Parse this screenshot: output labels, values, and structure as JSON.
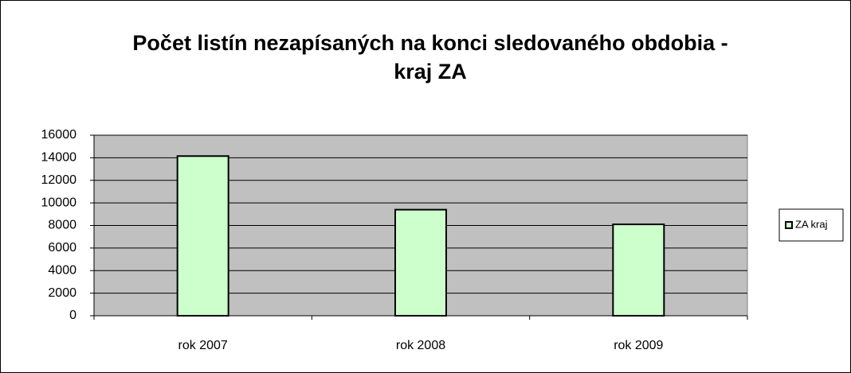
{
  "chart_data": {
    "type": "bar",
    "title": "Počet listín nezapísaných na konci sledovaného obdobia - kraj ZA",
    "categories": [
      "rok 2007",
      "rok 2008",
      "rok 2009"
    ],
    "series": [
      {
        "name": "ZA kraj",
        "color": "#ccffcc",
        "values": [
          14150,
          9400,
          8100
        ]
      }
    ],
    "ylim": [
      0,
      16000
    ],
    "yticks": [
      0,
      2000,
      4000,
      6000,
      8000,
      10000,
      12000,
      14000,
      16000
    ],
    "grid": true,
    "legend": "right"
  }
}
